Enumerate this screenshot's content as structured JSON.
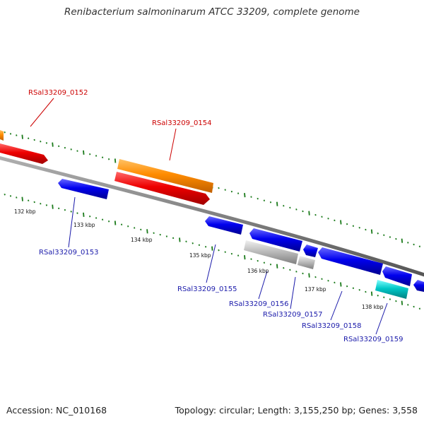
{
  "title": "Renibacterium salmoninarum ATCC 33209, complete genome",
  "footer": {
    "accession": "Accession: NC_010168",
    "topology": "Topology: circular; Length: 3,155,250 bp; Genes: 3,558"
  },
  "colors": {
    "backbone": "#808080",
    "tick": "#1a7a1a",
    "forward_label": "#cc0000",
    "reverse_label": "#1a1aaa",
    "scale_label": "#111111",
    "red": "#ee0000",
    "orange": "#ff8c00",
    "blue": "#0000ee",
    "gray": "#bdbdbd",
    "cyan": "#00c8c8"
  },
  "scale_labels": [
    "132 kbp",
    "133 kbp",
    "134 kbp",
    "135 kbp",
    "136 kbp",
    "137 kbp",
    "138 kbp"
  ],
  "gene_labels": [
    {
      "text": "RSal33209_0152",
      "strand": "forward"
    },
    {
      "text": "RSal33209_0154",
      "strand": "forward"
    },
    {
      "text": "RSal33209_0153",
      "strand": "reverse"
    },
    {
      "text": "RSal33209_0155",
      "strand": "reverse"
    },
    {
      "text": "RSal33209_0156",
      "strand": "reverse"
    },
    {
      "text": "RSal33209_0157",
      "strand": "reverse"
    },
    {
      "text": "RSal33209_0158",
      "strand": "reverse"
    },
    {
      "text": "RSal33209_0159",
      "strand": "reverse"
    }
  ],
  "features": [
    {
      "name": "orange-gene-left-edge",
      "color": "orange"
    },
    {
      "name": "red-gene-0152",
      "color": "red"
    },
    {
      "name": "orange-gene-0154-band",
      "color": "orange"
    },
    {
      "name": "red-gene-0154",
      "color": "red"
    },
    {
      "name": "blue-gene-0153",
      "color": "blue"
    },
    {
      "name": "blue-gene-0155",
      "color": "blue"
    },
    {
      "name": "blue-gene-0156",
      "color": "blue"
    },
    {
      "name": "gray-gene-0156",
      "color": "gray"
    },
    {
      "name": "blue-gene-0157",
      "color": "blue"
    },
    {
      "name": "gray-gene-0157",
      "color": "gray"
    },
    {
      "name": "blue-gene-0158",
      "color": "blue"
    },
    {
      "name": "blue-gene-0158b",
      "color": "blue"
    },
    {
      "name": "cyan-gene-0159",
      "color": "cyan"
    },
    {
      "name": "blue-gene-right-edge",
      "color": "blue"
    }
  ]
}
